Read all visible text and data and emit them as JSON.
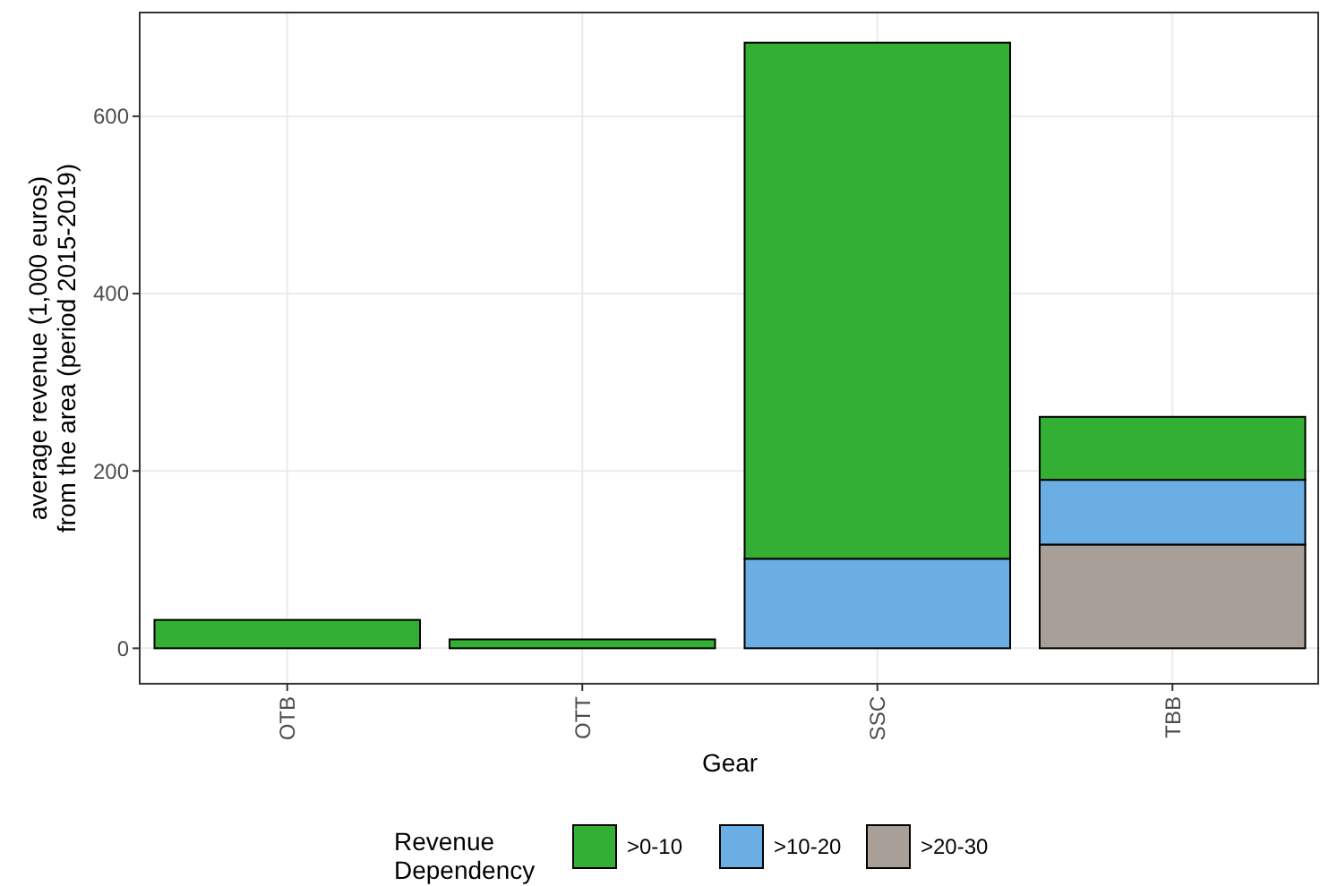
{
  "chart_data": {
    "type": "bar",
    "xlabel": "Gear",
    "ylabel": "average revenue (1,000 euros)\nfrom the area (period 2015-2019)",
    "legend_title": "Revenue\nDependency",
    "categories": [
      "OTB",
      "OTT",
      "SSC",
      "TBB"
    ],
    "stacked": true,
    "series": [
      {
        "name": ">20-30",
        "color": "#a89f98",
        "values": [
          0,
          0,
          0,
          117
        ]
      },
      {
        "name": ">10-20",
        "color": "#6aaee4",
        "values": [
          0,
          0,
          101,
          73
        ]
      },
      {
        "name": ">0-10",
        "color": "#33b033",
        "values": [
          32,
          10,
          582,
          71
        ]
      }
    ],
    "ylim": [
      -40,
      717
    ],
    "yticks": [
      0,
      200,
      400,
      600
    ],
    "grid": true,
    "legend": "bottom"
  }
}
